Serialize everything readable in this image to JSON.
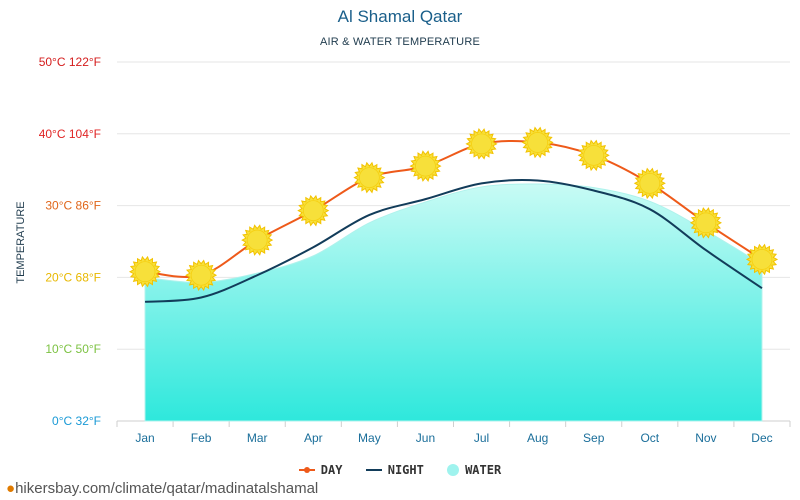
{
  "title": "Al Shamal Qatar",
  "subtitle": "AIR & WATER TEMPERATURE",
  "footer": "hikersbay.com/climate/qatar/madinatalshamal",
  "legend": {
    "day": "DAY",
    "night": "NIGHT",
    "water": "WATER"
  },
  "colors": {
    "day": "#ee5a1a",
    "night": "#123c5a",
    "water_top": "#c8fbf5",
    "water_bottom": "#2ee8dc",
    "sun": "#f7e03a",
    "sun_edge": "#f2c200"
  },
  "chart_data": {
    "type": "line",
    "xlabel": "",
    "ylabel": "TEMPERATURE",
    "categories": [
      "Jan",
      "Feb",
      "Mar",
      "Apr",
      "May",
      "Jun",
      "Jul",
      "Aug",
      "Sep",
      "Oct",
      "Nov",
      "Dec"
    ],
    "ylim": [
      0,
      50
    ],
    "y_ticks": [
      {
        "value": 0,
        "label": "0°C 32°F",
        "color": "#1a9ad6"
      },
      {
        "value": 10,
        "label": "10°C 50°F",
        "color": "#7cc242"
      },
      {
        "value": 20,
        "label": "20°C 68°F",
        "color": "#e8b800"
      },
      {
        "value": 30,
        "label": "30°C 86°F",
        "color": "#e0661a"
      },
      {
        "value": 40,
        "label": "40°C 104°F",
        "color": "#e02424"
      },
      {
        "value": 50,
        "label": "50°C 122°F",
        "color": "#d41c1c"
      }
    ],
    "grid": true,
    "legend_position": "bottom",
    "series": [
      {
        "name": "DAY",
        "values": [
          20.8,
          20.3,
          25.2,
          29.3,
          33.9,
          35.5,
          38.6,
          38.8,
          37.0,
          33.1,
          27.6,
          22.5
        ]
      },
      {
        "name": "NIGHT",
        "values": [
          16.6,
          17.2,
          20.3,
          24.2,
          28.7,
          30.9,
          33.1,
          33.5,
          32.1,
          29.5,
          23.8,
          18.5
        ]
      },
      {
        "name": "WATER",
        "values": [
          20.0,
          19.3,
          20.6,
          23.0,
          27.6,
          30.5,
          32.6,
          33.0,
          32.5,
          30.6,
          26.5,
          21.8
        ]
      }
    ]
  }
}
